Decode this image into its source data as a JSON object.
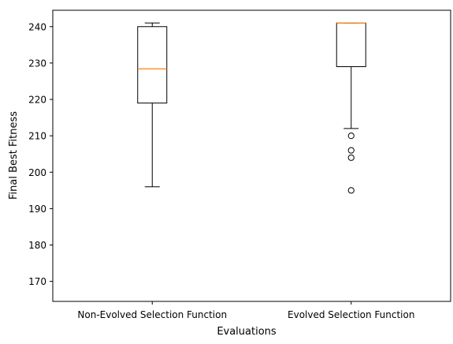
{
  "chart_data": {
    "type": "box",
    "title": "",
    "xlabel": "Evaluations",
    "ylabel": "Final Best Fitness",
    "ylim": [
      164.5,
      244.5
    ],
    "yticks": [
      170,
      180,
      190,
      200,
      210,
      220,
      230,
      240
    ],
    "categories": [
      "Non-Evolved Selection Function",
      "Evolved Selection Function"
    ],
    "boxes": [
      {
        "category": "Non-Evolved Selection Function",
        "whisker_low": 196,
        "q1": 219,
        "median": 228.4,
        "q3": 240,
        "whisker_high": 241,
        "outliers": []
      },
      {
        "category": "Evolved Selection Function",
        "whisker_low": 212,
        "q1": 229,
        "median": 241,
        "q3": 241,
        "whisker_high": 241,
        "outliers": [
          210,
          206,
          204,
          195
        ]
      }
    ],
    "grid": false,
    "colors": {
      "box": "#000000",
      "median": "#ff7f0e",
      "background": "#ffffff"
    }
  }
}
